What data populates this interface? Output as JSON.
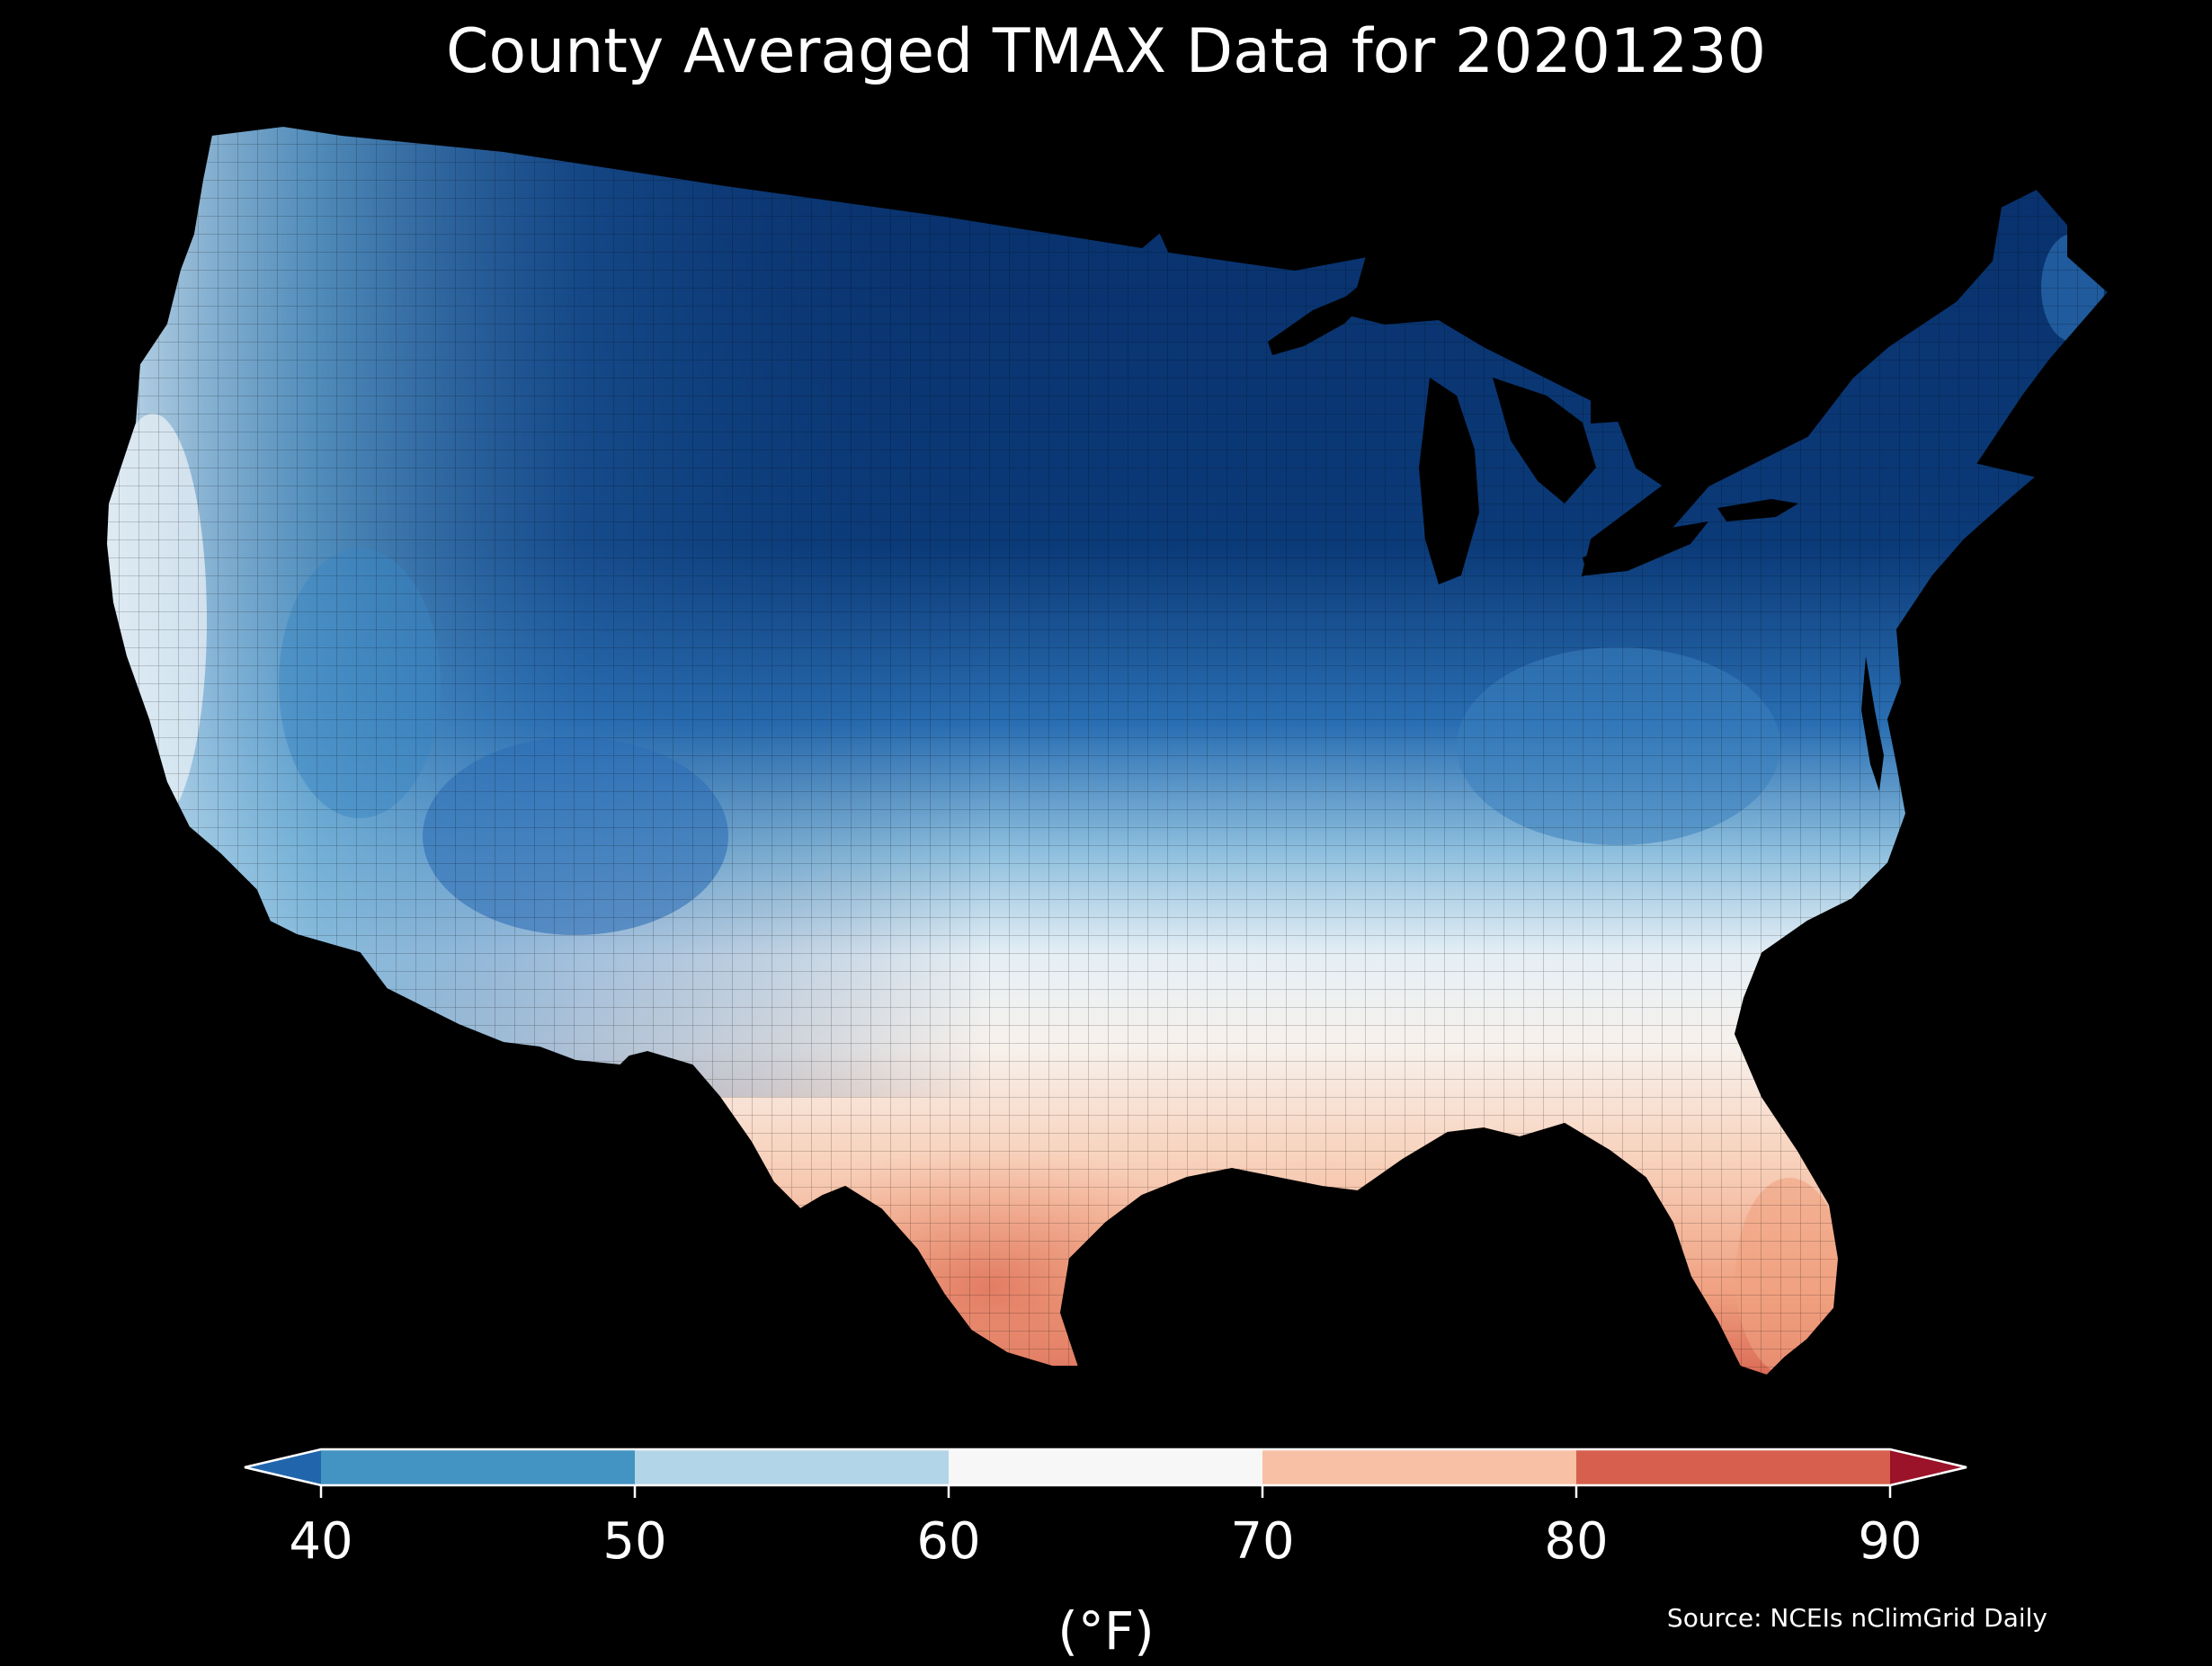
{
  "title": "County Averaged TMAX Data for 20201230",
  "colorbar": {
    "unit_label": "(°F)",
    "ticks": [
      "40",
      "50",
      "60",
      "70",
      "80",
      "90"
    ],
    "bins": [
      {
        "range": "<40",
        "color": "#2166ac"
      },
      {
        "range": "40-50",
        "color": "#4393c3"
      },
      {
        "range": "50-60",
        "color": "#b3d5e8"
      },
      {
        "range": "60-70",
        "color": "#f7f7f7"
      },
      {
        "range": "70-80",
        "color": "#f8c0a4"
      },
      {
        "range": "80-90",
        "color": "#d6604d"
      },
      {
        "range": ">90",
        "color": "#9a1328"
      }
    ]
  },
  "map": {
    "region": "Contiguous United States",
    "variable": "TMAX",
    "coldest_color": "#08306b",
    "warmest_color": "#d6604d",
    "background": "#000000"
  },
  "source": "Source: NCEIs nClimGrid Daily"
}
